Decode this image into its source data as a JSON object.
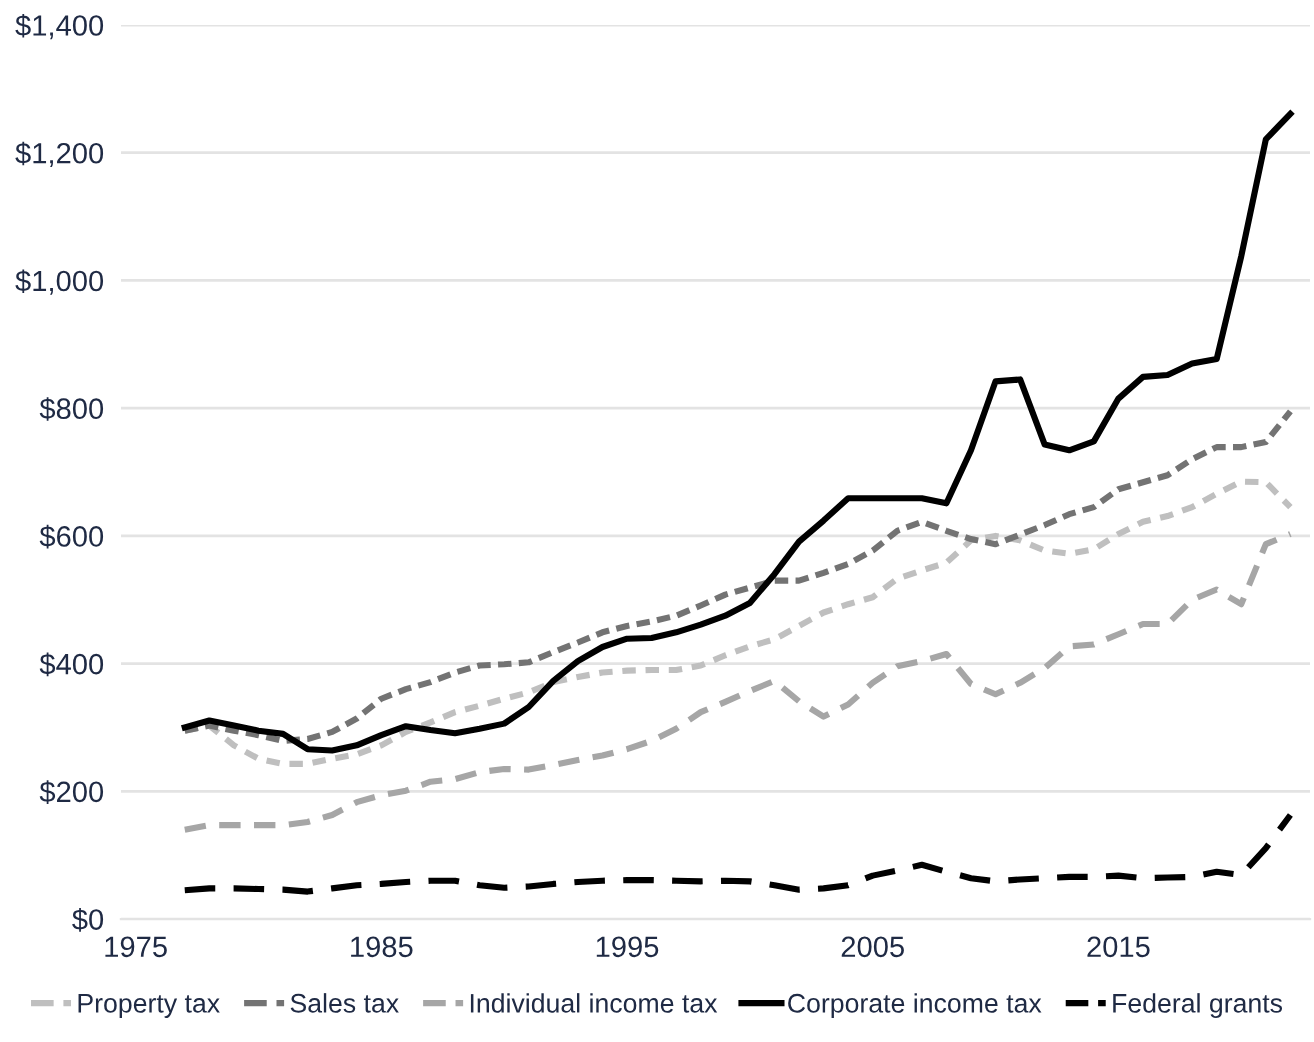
{
  "chart_data": {
    "type": "line",
    "x": [
      1977,
      1978,
      1979,
      1980,
      1981,
      1982,
      1983,
      1984,
      1985,
      1986,
      1987,
      1988,
      1989,
      1990,
      1991,
      1992,
      1993,
      1994,
      1995,
      1996,
      1997,
      1998,
      1999,
      2000,
      2001,
      2002,
      2003,
      2004,
      2005,
      2006,
      2007,
      2008,
      2009,
      2010,
      2011,
      2012,
      2013,
      2014,
      2015,
      2016,
      2017,
      2018,
      2019,
      2020,
      2021,
      2022
    ],
    "xlim": [
      1974.4,
      2022.8
    ],
    "xticks": [
      1975,
      1985,
      1995,
      2005,
      2015
    ],
    "ylim": [
      0,
      1400
    ],
    "yticks": [
      {
        "value": 0,
        "label": "$0"
      },
      {
        "value": 200,
        "label": "$200"
      },
      {
        "value": 400,
        "label": "$400"
      },
      {
        "value": 600,
        "label": "$600"
      },
      {
        "value": 800,
        "label": "$800"
      },
      {
        "value": 1000,
        "label": "$1,000"
      },
      {
        "value": 1200,
        "label": "$1,200"
      },
      {
        "value": 1400,
        "label": "$1,400"
      }
    ],
    "grid": "y",
    "legend": "bottom",
    "series": [
      {
        "name": "Property tax",
        "color": "#bfbfbf",
        "line_style": "dashed",
        "values": [
          295,
          303,
          272,
          251,
          243,
          243,
          251,
          258,
          272,
          293,
          308,
          324,
          334,
          345,
          355,
          371,
          379,
          386,
          389,
          390,
          390,
          397,
          413,
          427,
          438,
          459,
          480,
          493,
          504,
          533,
          546,
          558,
          593,
          600,
          593,
          577,
          572,
          579,
          603,
          622,
          631,
          645,
          666,
          685,
          684,
          645
        ]
      },
      {
        "name": "Sales tax",
        "color": "#737373",
        "line_style": "dashed",
        "values": [
          295,
          303,
          295,
          288,
          279,
          282,
          293,
          314,
          345,
          360,
          371,
          386,
          397,
          399,
          402,
          418,
          433,
          449,
          459,
          466,
          475,
          491,
          508,
          519,
          530,
          530,
          542,
          556,
          577,
          608,
          622,
          608,
          595,
          587,
          602,
          617,
          634,
          645,
          673,
          684,
          695,
          720,
          739,
          739,
          747,
          795
        ]
      },
      {
        "name": "Individual income tax",
        "color": "#a6a6a6",
        "line_style": "dashed",
        "values": [
          140,
          147,
          147,
          147,
          147,
          152,
          163,
          183,
          194,
          201,
          215,
          219,
          230,
          235,
          234,
          241,
          249,
          256,
          266,
          279,
          298,
          324,
          340,
          357,
          373,
          341,
          317,
          336,
          370,
          396,
          404,
          415,
          368,
          352,
          370,
          393,
          427,
          430,
          446,
          462,
          462,
          500,
          516,
          493,
          587,
          603
        ]
      },
      {
        "name": "Corporate income tax",
        "color": "#000000",
        "line_style": "solid",
        "values": [
          300,
          311,
          303,
          295,
          290,
          266,
          264,
          272,
          288,
          302,
          296,
          291,
          298,
          306,
          332,
          373,
          404,
          426,
          439,
          440,
          449,
          461,
          475,
          495,
          540,
          591,
          624,
          659,
          659,
          659,
          659,
          651,
          734,
          842,
          845,
          743,
          734,
          748,
          815,
          849,
          852,
          870,
          877,
          1038,
          1221,
          1261
        ]
      },
      {
        "name": "Federal grants",
        "color": "#000000",
        "line_style": "dashed",
        "values": [
          45,
          48,
          48,
          47,
          46,
          43,
          48,
          53,
          55,
          58,
          60,
          60,
          53,
          49,
          51,
          55,
          58,
          60,
          61,
          61,
          60,
          59,
          60,
          59,
          53,
          46,
          48,
          53,
          68,
          76,
          85,
          74,
          64,
          59,
          62,
          64,
          66,
          66,
          68,
          64,
          65,
          66,
          74,
          69,
          111,
          163
        ]
      }
    ]
  }
}
